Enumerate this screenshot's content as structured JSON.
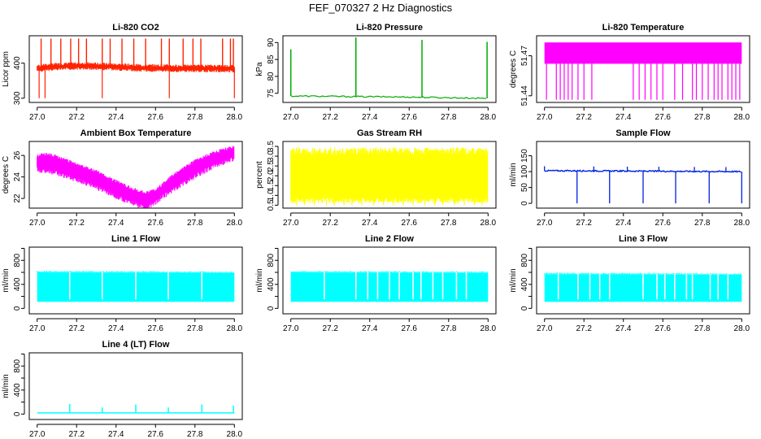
{
  "figure_title": "FEF_070327  2 Hz Diagnostics",
  "chart_data": [
    {
      "id": "co2",
      "type": "line",
      "title": "Li-820 CO2",
      "xlabel": "",
      "ylabel": "Licor ppm",
      "color": "#ff2200",
      "xlim": [
        26.96,
        28.04
      ],
      "ylim": [
        288,
        478
      ],
      "xticks": [
        27.0,
        27.2,
        27.4,
        27.6,
        27.8,
        28.0
      ],
      "xtick_labels": [
        "27.0",
        "27.2",
        "27.4",
        "27.6",
        "27.8",
        "28.0"
      ],
      "yticks": [
        300,
        400
      ],
      "ytick_labels": [
        "300",
        "400"
      ],
      "series": [
        {
          "name": "CO2",
          "x": [
            27.0,
            27.05,
            27.1,
            27.15,
            27.2,
            27.25,
            27.3,
            27.35,
            27.4,
            27.45,
            27.5,
            27.55,
            27.6,
            27.65,
            27.7,
            27.75,
            27.8,
            27.85,
            27.9,
            27.95,
            28.0
          ],
          "y": [
            385,
            388,
            390,
            391,
            392,
            392,
            391,
            390,
            389,
            388,
            387,
            386,
            386,
            386,
            385,
            385,
            385,
            385,
            385,
            385,
            384
          ]
        }
      ],
      "spikes_x": [
        27.02,
        27.07,
        27.12,
        27.17,
        27.21,
        27.25,
        27.33,
        27.37,
        27.43,
        27.49,
        27.55,
        27.63,
        27.67,
        27.74,
        27.79,
        27.83,
        27.94,
        27.98,
        27.995
      ],
      "dips_x": [
        27.01,
        27.04,
        27.33,
        27.67,
        28.0
      ]
    },
    {
      "id": "pressure",
      "type": "line",
      "title": "Li-820 Pressure",
      "xlabel": "",
      "ylabel": "kPa",
      "color": "#00aa00",
      "xlim": [
        26.96,
        28.04
      ],
      "ylim": [
        72.3,
        92.0
      ],
      "xticks": [
        27.0,
        27.2,
        27.4,
        27.6,
        27.8,
        28.0
      ],
      "xtick_labels": [
        "27.0",
        "27.2",
        "27.4",
        "27.6",
        "27.8",
        "28.0"
      ],
      "yticks": [
        75,
        80,
        85,
        90
      ],
      "ytick_labels": [
        "75",
        "80",
        "85",
        "90"
      ],
      "series": [
        {
          "name": "Pressure",
          "x": [
            27.0,
            27.2,
            27.4,
            27.6,
            27.8,
            28.0
          ],
          "y": [
            74.2,
            74.1,
            74.0,
            73.9,
            73.7,
            73.5
          ]
        }
      ],
      "spikes": [
        [
          27.0,
          88.0
        ],
        [
          27.33,
          91.5
        ],
        [
          27.665,
          90.8
        ],
        [
          27.995,
          90.2
        ]
      ]
    },
    {
      "id": "licor_temp",
      "type": "line",
      "title": "Li-820 Temperature",
      "xlabel": "",
      "ylabel": "degrees C",
      "color": "#ff00ff",
      "xlim": [
        26.96,
        28.04
      ],
      "ylim": [
        51.435,
        51.485
      ],
      "xticks": [
        27.0,
        27.2,
        27.4,
        27.6,
        27.8,
        28.0
      ],
      "xtick_labels": [
        "27.0",
        "27.2",
        "27.4",
        "27.6",
        "27.8",
        "28.0"
      ],
      "yticks": [
        51.44,
        51.47
      ],
      "ytick_labels": [
        "51.44",
        "51.47"
      ],
      "band": [
        51.464,
        51.48
      ],
      "dips_x": [
        27.01,
        27.06,
        27.08,
        27.1,
        27.12,
        27.14,
        27.17,
        27.2,
        27.24,
        27.45,
        27.48,
        27.51,
        27.54,
        27.57,
        27.6,
        27.66,
        27.7,
        27.75,
        27.77,
        27.8,
        27.83,
        27.86,
        27.88,
        27.9,
        27.93,
        27.95,
        27.97,
        27.99
      ],
      "dip_low": 51.437
    },
    {
      "id": "box_temp",
      "type": "area",
      "title": "Ambient Box Temperature",
      "xlabel": "",
      "ylabel": "degrees C",
      "color": "#ff00ff",
      "xlim": [
        26.96,
        28.04
      ],
      "ylim": [
        21.1,
        27.3
      ],
      "xticks": [
        27.0,
        27.2,
        27.4,
        27.6,
        27.8,
        28.0
      ],
      "xtick_labels": [
        "27.0",
        "27.2",
        "27.4",
        "27.6",
        "27.8",
        "28.0"
      ],
      "yticks": [
        22,
        24,
        26
      ],
      "ytick_labels": [
        "22",
        "24",
        "26"
      ],
      "series": [
        {
          "name": "upper",
          "x": [
            27.0,
            27.05,
            27.1,
            27.2,
            27.3,
            27.4,
            27.5,
            27.55,
            27.6,
            27.7,
            27.8,
            27.9,
            28.0
          ],
          "y": [
            26.0,
            26.1,
            25.9,
            25.2,
            24.5,
            23.6,
            22.8,
            22.5,
            22.8,
            24.3,
            25.5,
            26.3,
            26.8
          ]
        },
        {
          "name": "lower",
          "x": [
            27.0,
            27.05,
            27.1,
            27.2,
            27.3,
            27.4,
            27.5,
            27.55,
            27.6,
            27.7,
            27.8,
            27.9,
            28.0
          ],
          "y": [
            24.9,
            24.8,
            24.6,
            24.0,
            23.3,
            22.4,
            21.7,
            21.3,
            21.9,
            23.2,
            24.3,
            25.3,
            26.0
          ]
        }
      ]
    },
    {
      "id": "rh",
      "type": "area",
      "title": "Gas Stream RH",
      "xlabel": "",
      "ylabel": "percent",
      "color": "#ffff00",
      "xlim": [
        26.96,
        28.04
      ],
      "ylim": [
        0.35,
        3.75
      ],
      "xticks": [
        27.0,
        27.2,
        27.4,
        27.6,
        27.8,
        28.0
      ],
      "xtick_labels": [
        "27.0",
        "27.2",
        "27.4",
        "27.6",
        "27.8",
        "28.0"
      ],
      "yticks": [
        0.5,
        1.0,
        1.5,
        2.0,
        2.5,
        3.0,
        3.5
      ],
      "ytick_labels": [
        "0.5",
        "1.0",
        "1.5",
        "2.0",
        "2.5",
        "3.0",
        "3.5"
      ],
      "series": [
        {
          "name": "upper",
          "x": [
            27.0,
            28.0
          ],
          "y": [
            3.45,
            3.45
          ]
        },
        {
          "name": "lower",
          "x": [
            27.0,
            28.0
          ],
          "y": [
            0.9,
            0.9
          ]
        }
      ],
      "dips_x": [
        27.03,
        27.07,
        27.12,
        27.18,
        27.22,
        27.27,
        27.31,
        27.36,
        27.42,
        27.47,
        27.52,
        27.57,
        27.62,
        27.68,
        27.73,
        27.77,
        27.83,
        27.88,
        27.93,
        27.97
      ],
      "dip_low": 0.5
    },
    {
      "id": "sample_flow",
      "type": "line",
      "title": "Sample Flow",
      "xlabel": "",
      "ylabel": "ml/min",
      "color": "#0022dd",
      "xlim": [
        26.96,
        28.04
      ],
      "ylim": [
        -15,
        195
      ],
      "xticks": [
        27.0,
        27.2,
        27.4,
        27.6,
        27.8,
        28.0
      ],
      "xtick_labels": [
        "27.0",
        "27.2",
        "27.4",
        "27.6",
        "27.8",
        "28.0"
      ],
      "yticks": [
        0,
        50,
        100,
        150
      ],
      "ytick_labels": [
        "0",
        "50",
        "100",
        "150"
      ],
      "series": [
        {
          "name": "Flow",
          "x": [
            27.0,
            28.0
          ],
          "y": [
            103,
            100
          ]
        }
      ],
      "dips_x": [
        27.165,
        27.33,
        27.5,
        27.665,
        27.835,
        28.0
      ],
      "dip_low": 0,
      "bump_x": [
        27.0,
        27.25,
        27.42,
        27.58,
        27.76,
        27.92
      ]
    },
    {
      "id": "line1",
      "type": "area",
      "title": "Line 1 Flow",
      "xlabel": "",
      "ylabel": "ml/min",
      "color": "#00ffff",
      "xlim": [
        26.96,
        28.04
      ],
      "ylim": [
        -90,
        1020
      ],
      "xticks": [
        27.0,
        27.2,
        27.4,
        27.6,
        27.8,
        28.0
      ],
      "xtick_labels": [
        "27.0",
        "27.2",
        "27.4",
        "27.6",
        "27.8",
        "28.0"
      ],
      "yticks": [
        0,
        400,
        800
      ],
      "ytick_labels": [
        "0",
        "400",
        "800"
      ],
      "minor_yticks": [
        200,
        600,
        1000
      ],
      "series": [
        {
          "name": "upper",
          "x": [
            27.0,
            28.0
          ],
          "y": [
            600,
            590
          ]
        },
        {
          "name": "lower",
          "x": [
            27.0,
            28.0
          ],
          "y": [
            110,
            110
          ]
        }
      ],
      "gaps_x": [
        27.165,
        27.33,
        27.5,
        27.665,
        27.835
      ]
    },
    {
      "id": "line2",
      "type": "area",
      "title": "Line 2 Flow",
      "xlabel": "",
      "ylabel": "ml/min",
      "color": "#00ffff",
      "xlim": [
        26.96,
        28.04
      ],
      "ylim": [
        -90,
        1020
      ],
      "xticks": [
        27.0,
        27.2,
        27.4,
        27.6,
        27.8,
        28.0
      ],
      "xtick_labels": [
        "27.0",
        "27.2",
        "27.4",
        "27.6",
        "27.8",
        "28.0"
      ],
      "yticks": [
        0,
        400,
        800
      ],
      "ytick_labels": [
        "0",
        "400",
        "800"
      ],
      "minor_yticks": [
        200,
        600,
        1000
      ],
      "series": [
        {
          "name": "upper",
          "x": [
            27.0,
            28.0
          ],
          "y": [
            600,
            590
          ]
        },
        {
          "name": "lower",
          "x": [
            27.0,
            28.0
          ],
          "y": [
            110,
            110
          ]
        }
      ],
      "gaps_x": [
        27.17,
        27.33,
        27.39,
        27.44,
        27.5,
        27.55,
        27.62,
        27.66,
        27.72,
        27.77,
        27.84,
        27.89
      ]
    },
    {
      "id": "line3",
      "type": "area",
      "title": "Line 3 Flow",
      "xlabel": "",
      "ylabel": "ml/min",
      "color": "#00ffff",
      "xlim": [
        26.96,
        28.04
      ],
      "ylim": [
        -90,
        1020
      ],
      "xticks": [
        27.0,
        27.2,
        27.4,
        27.6,
        27.8,
        28.0
      ],
      "xtick_labels": [
        "27.0",
        "27.2",
        "27.4",
        "27.6",
        "27.8",
        "28.0"
      ],
      "yticks": [
        0,
        400,
        800
      ],
      "ytick_labels": [
        "0",
        "400",
        "800"
      ],
      "minor_yticks": [
        200,
        600,
        1000
      ],
      "series": [
        {
          "name": "upper",
          "x": [
            27.0,
            28.0
          ],
          "y": [
            570,
            560
          ]
        },
        {
          "name": "lower",
          "x": [
            27.0,
            28.0
          ],
          "y": [
            110,
            110
          ]
        }
      ],
      "gaps_x": [
        27.07,
        27.17,
        27.23,
        27.28,
        27.33,
        27.5,
        27.57,
        27.61,
        27.66,
        27.72,
        27.75,
        27.84,
        27.88,
        27.93
      ]
    },
    {
      "id": "line4",
      "type": "line",
      "title": "Line 4 (LT) Flow",
      "xlabel": "",
      "ylabel": "ml/min",
      "color": "#00ffff",
      "xlim": [
        26.96,
        28.04
      ],
      "ylim": [
        -90,
        1020
      ],
      "xticks": [
        27.0,
        27.2,
        27.4,
        27.6,
        27.8,
        28.0
      ],
      "xtick_labels": [
        "27.0",
        "27.2",
        "27.4",
        "27.6",
        "27.8",
        "28.0"
      ],
      "yticks": [
        0,
        400,
        800
      ],
      "ytick_labels": [
        "0",
        "400",
        "800"
      ],
      "minor_yticks": [
        200,
        600,
        1000
      ],
      "series": [
        {
          "name": "Flow",
          "x": [
            27.0,
            28.0
          ],
          "y": [
            20,
            20
          ]
        }
      ],
      "spikes": [
        [
          27.165,
          170
        ],
        [
          27.33,
          110
        ],
        [
          27.5,
          160
        ],
        [
          27.665,
          110
        ],
        [
          27.835,
          160
        ],
        [
          27.995,
          140
        ]
      ]
    }
  ]
}
